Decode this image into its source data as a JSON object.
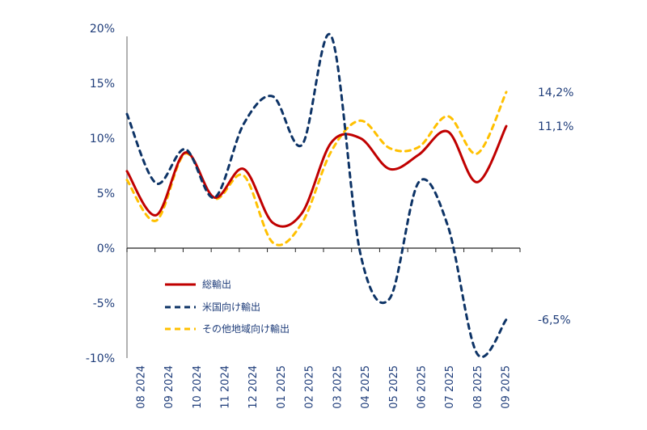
{
  "chart_data": {
    "type": "line",
    "title": "",
    "xlabel": "",
    "ylabel": "",
    "ylim": [
      -10,
      20
    ],
    "yticks": [
      "20%",
      "15%",
      "10%",
      "5%",
      "0%",
      "-5%",
      "-10%"
    ],
    "ytick_values": [
      20,
      15,
      10,
      5,
      0,
      -5,
      -10
    ],
    "categories": [
      "08 2024",
      "09 2024",
      "10 2024",
      "11 2024",
      "12 2024",
      "01 2025",
      "02 2025",
      "03 2025",
      "04 2025",
      "05 2025",
      "06 2025",
      "07 2025",
      "08 2025",
      "09 2025"
    ],
    "grid": false,
    "legend_position": "bottom-left-inside",
    "series": [
      {
        "name": "総輸出",
        "style": "solid",
        "color": "#c00000",
        "values": [
          7.0,
          3.0,
          8.7,
          4.6,
          7.2,
          2.3,
          3.2,
          9.6,
          10.0,
          7.2,
          8.5,
          10.6,
          6.0,
          11.1
        ],
        "end_label": "11,1%"
      },
      {
        "name": "米国向け輸出",
        "style": "dashed",
        "color": "#0d3366",
        "values": [
          12.2,
          5.9,
          9.0,
          4.6,
          11.3,
          13.8,
          9.4,
          19.3,
          -0.5,
          -4.6,
          6.0,
          2.0,
          -9.6,
          -6.5
        ],
        "end_label": "-6,5%"
      },
      {
        "name": "その他地域向け輸出",
        "style": "dashed",
        "color": "#ffc000",
        "values": [
          6.2,
          2.5,
          8.6,
          4.5,
          6.6,
          0.5,
          2.3,
          8.8,
          11.6,
          9.1,
          9.2,
          12.0,
          8.6,
          14.2
        ],
        "end_label": "14,2%"
      }
    ]
  }
}
